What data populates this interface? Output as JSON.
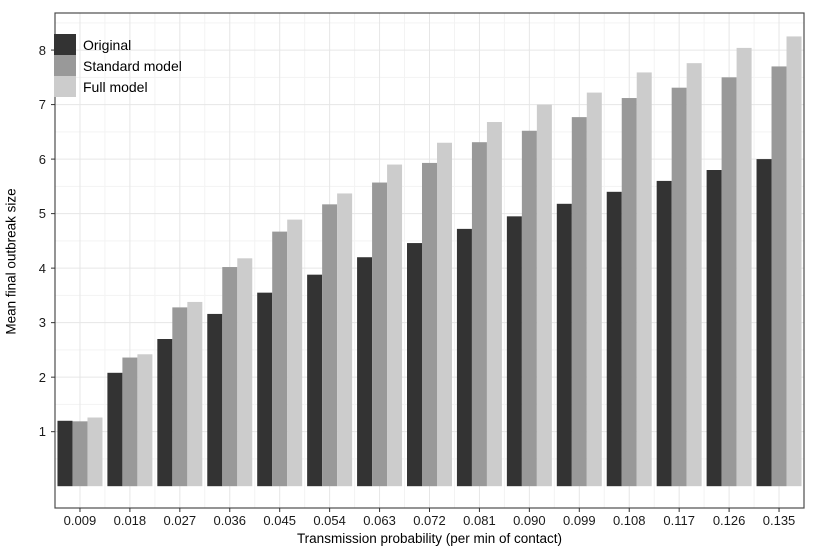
{
  "chart_data": {
    "type": "bar",
    "title": "",
    "xlabel": "Transmission probability (per min of contact)",
    "ylabel": "Mean final outbreak size",
    "categories": [
      "0.009",
      "0.018",
      "0.027",
      "0.036",
      "0.045",
      "0.054",
      "0.063",
      "0.072",
      "0.081",
      "0.090",
      "0.099",
      "0.108",
      "0.117",
      "0.126",
      "0.135"
    ],
    "series": [
      {
        "name": "Original",
        "color": "#333333",
        "values": [
          1.2,
          2.08,
          2.7,
          3.16,
          3.55,
          3.88,
          4.2,
          4.46,
          4.72,
          4.95,
          5.18,
          5.4,
          5.6,
          5.8,
          6.0
        ]
      },
      {
        "name": "Standard model",
        "color": "#999999",
        "values": [
          1.19,
          2.36,
          3.28,
          4.02,
          4.67,
          5.17,
          5.57,
          5.93,
          6.31,
          6.52,
          6.77,
          7.12,
          7.31,
          7.5,
          7.7
        ]
      },
      {
        "name": "Full model",
        "color": "#cccccc",
        "values": [
          1.26,
          2.42,
          3.38,
          4.18,
          4.89,
          5.37,
          5.9,
          6.3,
          6.68,
          7.0,
          7.22,
          7.59,
          7.76,
          8.04,
          8.25
        ]
      }
    ],
    "yticks": [
      1,
      2,
      3,
      4,
      5,
      6,
      7,
      8
    ],
    "ylim": [
      -0.4,
      8.68
    ],
    "baseline": 0,
    "grid": {
      "major": "#e6e6e6",
      "minor": "#f3f3f3",
      "shown": true
    },
    "panel": {
      "border": "#4c4c4c",
      "background": "#ffffff",
      "tick_color": "#333333"
    },
    "legend_position": "top-left-inside"
  }
}
